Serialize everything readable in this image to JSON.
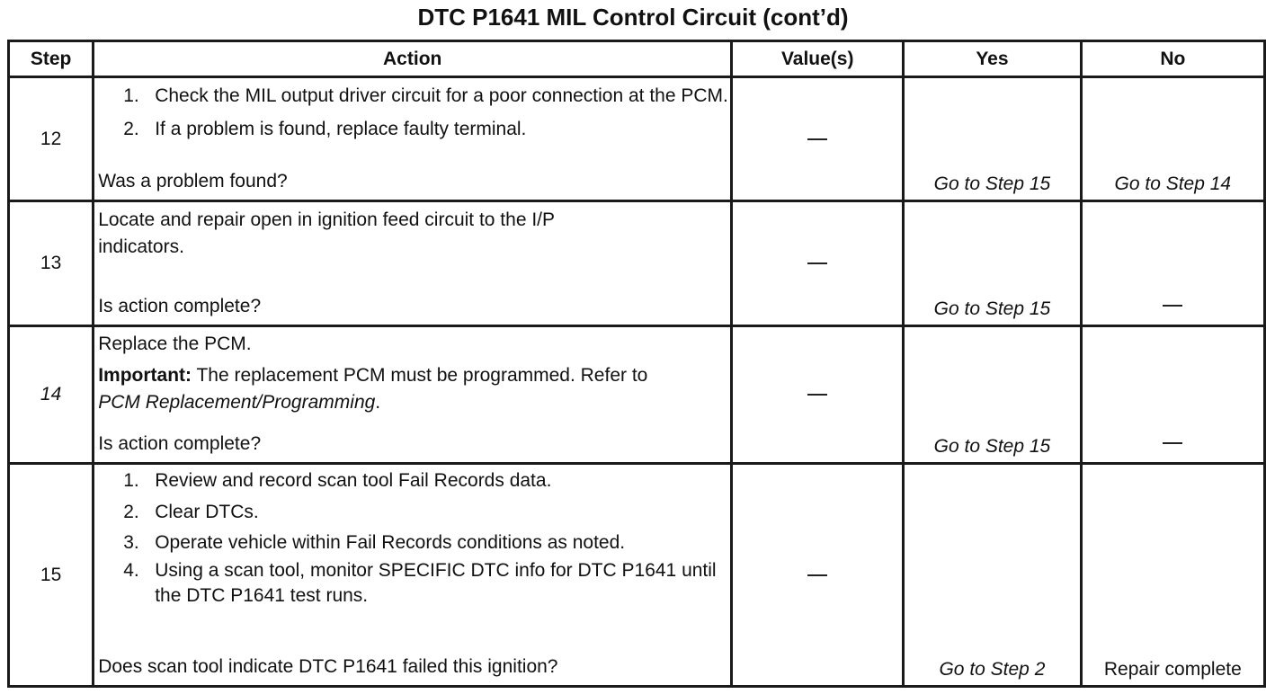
{
  "title": "DTC P1641 MIL Control Circuit (cont’d)",
  "headers": {
    "step": "Step",
    "action": "Action",
    "value": "Value(s)",
    "yes": "Yes",
    "no": "No"
  },
  "rows": [
    {
      "step": "12",
      "items": [
        {
          "num": "1.",
          "text": "Check the MIL output driver circuit for a poor connection at the PCM."
        },
        {
          "num": "2.",
          "text": "If a problem is found, replace faulty terminal."
        }
      ],
      "question": "Was a problem found?",
      "value": "—",
      "yes": "Go to Step 15",
      "no": "Go to Step 14"
    },
    {
      "step": "13",
      "text": "Locate and repair open in ignition feed circuit to the I/P indicators.",
      "question": "Is action complete?",
      "value": "—",
      "yes": "Go to Step 15",
      "no": "—"
    },
    {
      "step": "14",
      "line1": "Replace the PCM.",
      "important_label": "Important:",
      "important_text": " The replacement PCM must be programmed. Refer to ",
      "important_ref": "PCM Replacement/Programming",
      "important_end": ".",
      "question": "Is action complete?",
      "value": "—",
      "yes": "Go to Step 15",
      "no": "—"
    },
    {
      "step": "15",
      "items": [
        {
          "num": "1.",
          "text": "Review and record scan tool Fail Records data."
        },
        {
          "num": "2.",
          "text": "Clear DTCs."
        },
        {
          "num": "3.",
          "text": "Operate vehicle within Fail Records conditions as noted."
        },
        {
          "num": "4.",
          "text": "Using a scan tool, monitor SPECIFIC DTC info for DTC P1641 until the DTC P1641 test runs."
        }
      ],
      "question": "Does scan tool indicate DTC P1641 failed this ignition?",
      "value": "—",
      "yes": "Go to Step 2",
      "no": "Repair complete"
    }
  ]
}
